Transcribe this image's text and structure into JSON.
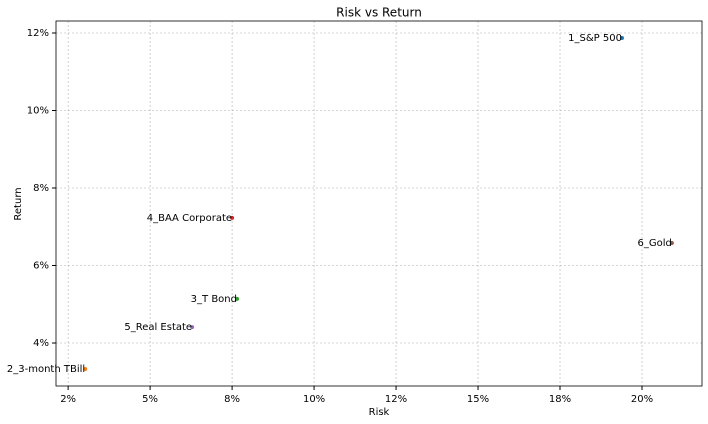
{
  "chart_data": {
    "type": "scatter",
    "title": "Risk vs Return",
    "xlabel": "Risk",
    "ylabel": "Return",
    "labels": [
      "1_S&P 500",
      "2_3-month TBill",
      "3_T Bond",
      "4_BAA Corporate",
      "5_Real Estate",
      "6_Gold"
    ],
    "x": [
      19.39,
      3.02,
      7.65,
      7.5,
      6.28,
      20.91
    ],
    "values": [
      11.87,
      3.33,
      5.14,
      7.23,
      4.41,
      6.58
    ],
    "colors": [
      "#1f77b4",
      "#ff7f0e",
      "#2ca02c",
      "#d62728",
      "#9467bd",
      "#8c564b"
    ],
    "xlim": [
      2.13,
      21.83
    ],
    "ylim": [
      2.89,
      12.31
    ],
    "xticks": [
      {
        "value": 2.5,
        "label": "2%"
      },
      {
        "value": 5,
        "label": "5%"
      },
      {
        "value": 7.5,
        "label": "8%"
      },
      {
        "value": 10,
        "label": "10%"
      },
      {
        "value": 12.5,
        "label": "12%"
      },
      {
        "value": 15,
        "label": "15%"
      },
      {
        "value": 17.5,
        "label": "18%"
      },
      {
        "value": 20,
        "label": "20%"
      }
    ],
    "yticks": [
      {
        "value": 4,
        "label": "4%"
      },
      {
        "value": 6,
        "label": "6%"
      },
      {
        "value": 8,
        "label": "8%"
      },
      {
        "value": 10,
        "label": "10%"
      },
      {
        "value": 12,
        "label": "12%"
      }
    ],
    "grid": true
  }
}
